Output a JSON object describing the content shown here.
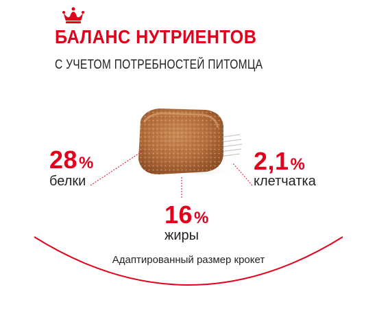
{
  "header": {
    "title": "БАЛАНС НУТРИЕНТОВ",
    "subtitle": "С УЧЕТОМ ПОТРЕБНОСТЕЙ ПИТОМЦА"
  },
  "nutrients": {
    "protein": {
      "value": "28",
      "unit": "%",
      "label": "белки"
    },
    "fiber": {
      "value": "2,1",
      "unit": "%",
      "label": "клетчатка"
    },
    "fat": {
      "value": "16",
      "unit": "%",
      "label": "жиры"
    }
  },
  "caption": "Адаптированный размер крокет",
  "colors": {
    "accent": "#e3001b",
    "text": "#222222"
  },
  "icons": {
    "brand": "crown-icon",
    "product": "kibble-image"
  }
}
